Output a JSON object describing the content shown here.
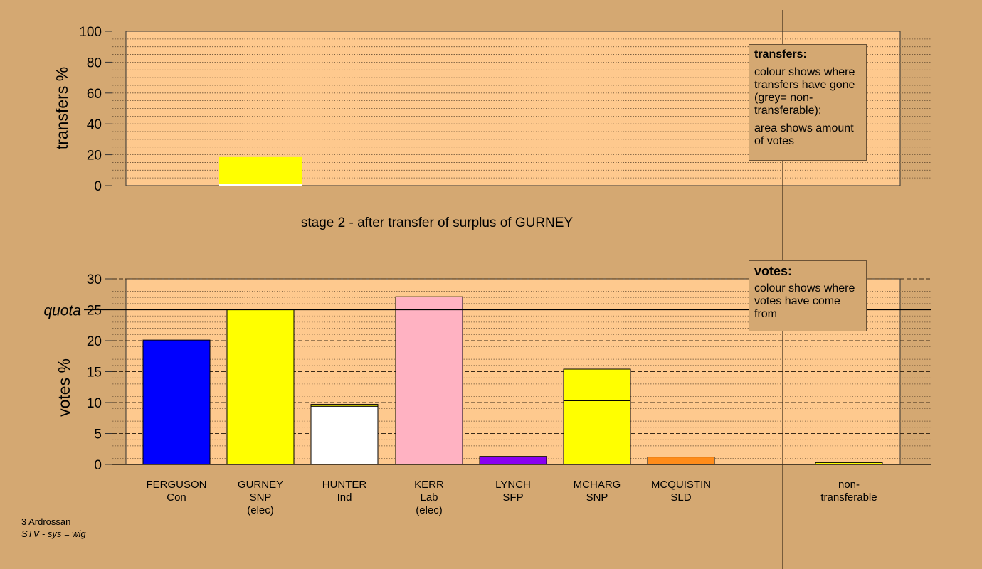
{
  "colors": {
    "background": "#d4a872",
    "plot_area": "#fec98e",
    "FERGUSON": "#0000ff",
    "GURNEY": "#ffff00",
    "HUNTER": "#ffffff",
    "KERR": "#ffb2c2",
    "LYNCH": "#8a00f0",
    "MCHARG": "#ffff00",
    "MCQUISTIN": "#ff8c1a",
    "non-transferable": "#ffff00"
  },
  "transfers_note": {
    "title": "transfers:",
    "line1": "colour shows where transfers have gone (grey= non-transferable);",
    "line2": "area shows amount of votes"
  },
  "votes_note": {
    "title": "votes:",
    "line1": "colour shows where votes have come from"
  },
  "footer": {
    "area": "3 Ardrossan",
    "system": "STV - sys = wig"
  },
  "chart_data": [
    {
      "type": "bar",
      "id": "transfers",
      "ylabel": "transfers %",
      "ylim": [
        0,
        100
      ],
      "yticks": [
        0,
        20,
        40,
        60,
        80,
        100
      ],
      "grid": true,
      "caption": "stage 2 - after transfer of surplus of GURNEY",
      "bars": [
        {
          "column": 1,
          "segments": [
            {
              "value": 1,
              "color": "#ffffff"
            },
            {
              "value": 17.5,
              "color": "#ffff00"
            }
          ]
        }
      ]
    },
    {
      "type": "bar",
      "id": "votes",
      "ylabel": "votes %",
      "ylim": [
        0,
        30
      ],
      "yticks": [
        0,
        5,
        10,
        15,
        20,
        25,
        30
      ],
      "quota": {
        "label": "quota",
        "value": 25
      },
      "grid": true,
      "categories": [
        {
          "name": "FERGUSON",
          "party": "Con",
          "note": ""
        },
        {
          "name": "GURNEY",
          "party": "SNP",
          "note": "(elec)"
        },
        {
          "name": "HUNTER",
          "party": "Ind",
          "note": ""
        },
        {
          "name": "KERR",
          "party": "Lab",
          "note": "(elec)"
        },
        {
          "name": "LYNCH",
          "party": "SFP",
          "note": ""
        },
        {
          "name": "MCHARG",
          "party": "SNP",
          "note": ""
        },
        {
          "name": "MCQUISTIN",
          "party": "SLD",
          "note": ""
        },
        {
          "name": "",
          "party": "",
          "note": ""
        },
        {
          "name": "non-",
          "party": "transferable",
          "note": ""
        }
      ],
      "series": [
        {
          "category": "FERGUSON",
          "segments": [
            {
              "value": 20.1,
              "color": "#0000ff"
            }
          ]
        },
        {
          "category": "GURNEY",
          "segments": [
            {
              "value": 25.0,
              "color": "#ffff00"
            }
          ]
        },
        {
          "category": "HUNTER",
          "segments": [
            {
              "value": 9.4,
              "color": "#ffffff"
            },
            {
              "value": 0.3,
              "color": "#ffff00"
            }
          ]
        },
        {
          "category": "KERR",
          "segments": [
            {
              "value": 27.1,
              "color": "#ffb2c2"
            }
          ]
        },
        {
          "category": "LYNCH",
          "segments": [
            {
              "value": 1.3,
              "color": "#8a00f0"
            }
          ]
        },
        {
          "category": "MCHARG",
          "segments": [
            {
              "value": 10.3,
              "color": "#ffff00"
            },
            {
              "value": 5.1,
              "color": "#ffff00"
            }
          ]
        },
        {
          "category": "MCQUISTIN",
          "segments": [
            {
              "value": 1.2,
              "color": "#ff8c1a"
            }
          ]
        },
        {
          "category": "non-transferable",
          "segments": [
            {
              "value": 0.3,
              "color": "#ffff00"
            }
          ]
        }
      ]
    }
  ]
}
